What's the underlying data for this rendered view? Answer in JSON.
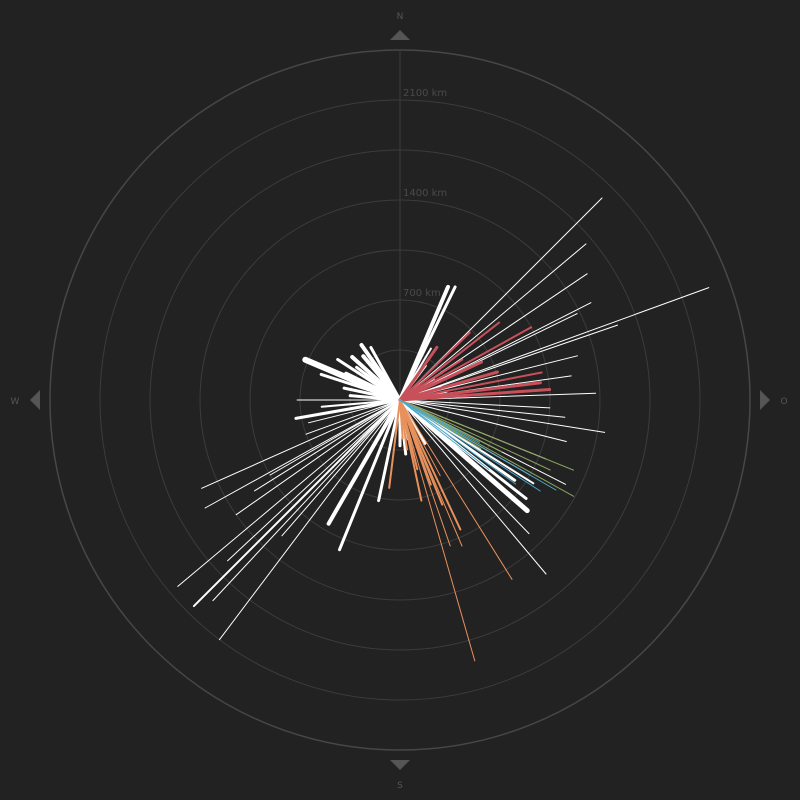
{
  "chart_data": {
    "type": "radial-lines",
    "description_axis": "bearing in degrees clockwise from north, length in km",
    "compass": {
      "north": "N",
      "east": "O",
      "south": "S",
      "west": "W"
    },
    "ring_ticks": [
      {
        "value": 700,
        "label": "700 km"
      },
      {
        "value": 1400,
        "label": "1400 km"
      },
      {
        "value": 2100,
        "label": "2100 km"
      }
    ],
    "rmax": 2450,
    "colors": {
      "background": "#222222",
      "grid": "#3c3c3c",
      "outer_ring": "#474747",
      "white": "#ffffff",
      "red": "#c8505a",
      "orange": "#e8915c",
      "green": "#8aa35c",
      "blue": "#4aa8cc"
    },
    "series": [
      {
        "name": "",
        "color": "white",
        "lines": [
          [
            45,
            2000,
            1
          ],
          [
            50,
            1700,
            1
          ],
          [
            56,
            1580,
            1
          ],
          [
            63,
            1500,
            1
          ],
          [
            64,
            1380,
            1
          ],
          [
            70,
            2300,
            1
          ],
          [
            71,
            1610,
            1
          ],
          [
            76,
            1280,
            1
          ],
          [
            82,
            1210,
            1
          ],
          [
            88,
            1370,
            1
          ],
          [
            93,
            1050,
            1
          ],
          [
            96,
            1160,
            1
          ],
          [
            99,
            1450,
            1
          ],
          [
            104,
            1200,
            1
          ],
          [
            112,
            1100,
            1
          ],
          [
            117,
            1300,
            1
          ],
          [
            120,
            1050,
            1
          ],
          [
            122,
            1100,
            2
          ],
          [
            125,
            980,
            3
          ],
          [
            128,
            1120,
            3
          ],
          [
            131,
            1180,
            5
          ],
          [
            136,
            1300,
            1
          ],
          [
            140,
            1590,
            1
          ],
          [
            150,
            350,
            3
          ],
          [
            168,
            280,
            3
          ],
          [
            174,
            380,
            3
          ],
          [
            180,
            320,
            3
          ],
          [
            192,
            720,
            3
          ],
          [
            202,
            1130,
            3
          ],
          [
            210,
            1000,
            4
          ],
          [
            217,
            2100,
            1
          ],
          [
            221,
            1260,
            1
          ],
          [
            223,
            1920,
            1
          ],
          [
            225,
            2040,
            2
          ],
          [
            227,
            1650,
            1
          ],
          [
            230,
            2030,
            1
          ],
          [
            235,
            1400,
            1
          ],
          [
            238,
            1200,
            1
          ],
          [
            240,
            1050,
            1
          ],
          [
            241,
            1560,
            1
          ],
          [
            246,
            1520,
            1
          ],
          [
            250,
            700,
            1
          ],
          [
            256,
            660,
            1
          ],
          [
            260,
            740,
            3
          ],
          [
            265,
            550,
            2
          ],
          [
            270,
            720,
            1
          ],
          [
            275,
            350,
            3
          ],
          [
            282,
            400,
            3
          ],
          [
            288,
            580,
            3
          ],
          [
            293,
            720,
            6
          ],
          [
            296,
            420,
            4
          ],
          [
            303,
            520,
            3
          ],
          [
            307,
            380,
            3
          ],
          [
            312,
            450,
            4
          ],
          [
            320,
            400,
            4
          ],
          [
            325,
            470,
            4
          ],
          [
            331,
            420,
            3
          ],
          [
            23,
            860,
            4
          ],
          [
            26,
            880,
            3
          ],
          [
            31,
            420,
            2
          ],
          [
            37,
            300,
            2
          ],
          [
            58,
            280,
            2
          ],
          [
            72,
            300,
            2
          ],
          [
            80,
            330,
            2
          ]
        ]
      },
      {
        "name": "",
        "color": "red",
        "lines": [
          [
            35,
            450,
            3
          ],
          [
            46,
            680,
            2
          ],
          [
            52,
            880,
            2
          ],
          [
            57,
            520,
            2
          ],
          [
            61,
            1050,
            2
          ],
          [
            65,
            630,
            3
          ],
          [
            74,
            710,
            3
          ],
          [
            79,
            1010,
            2
          ],
          [
            83,
            990,
            3
          ],
          [
            86,
            1050,
            3
          ]
        ]
      },
      {
        "name": "",
        "color": "orange",
        "lines": [
          [
            148,
            1480,
            1
          ],
          [
            152,
            600,
            1
          ],
          [
            155,
            1000,
            2
          ],
          [
            157,
            1110,
            1
          ],
          [
            158,
            790,
            2
          ],
          [
            160,
            630,
            2
          ],
          [
            161,
            1080,
            1
          ],
          [
            164,
            1900,
            1
          ],
          [
            166,
            500,
            2
          ],
          [
            168,
            720,
            2
          ],
          [
            172,
            350,
            2
          ],
          [
            176,
            270,
            2
          ],
          [
            187,
            620,
            2
          ]
        ]
      },
      {
        "name": "",
        "color": "green",
        "lines": [
          [
            112,
            1310,
            1
          ],
          [
            115,
            1160,
            1
          ],
          [
            117,
            800,
            1
          ],
          [
            119,
            1390,
            1
          ],
          [
            121,
            660,
            1
          ]
        ]
      },
      {
        "name": "",
        "color": "blue",
        "lines": [
          [
            118,
            630,
            1
          ],
          [
            120,
            1260,
            1
          ],
          [
            123,
            1170,
            1
          ],
          [
            126,
            1000,
            1
          ],
          [
            128,
            790,
            1
          ]
        ]
      }
    ]
  }
}
